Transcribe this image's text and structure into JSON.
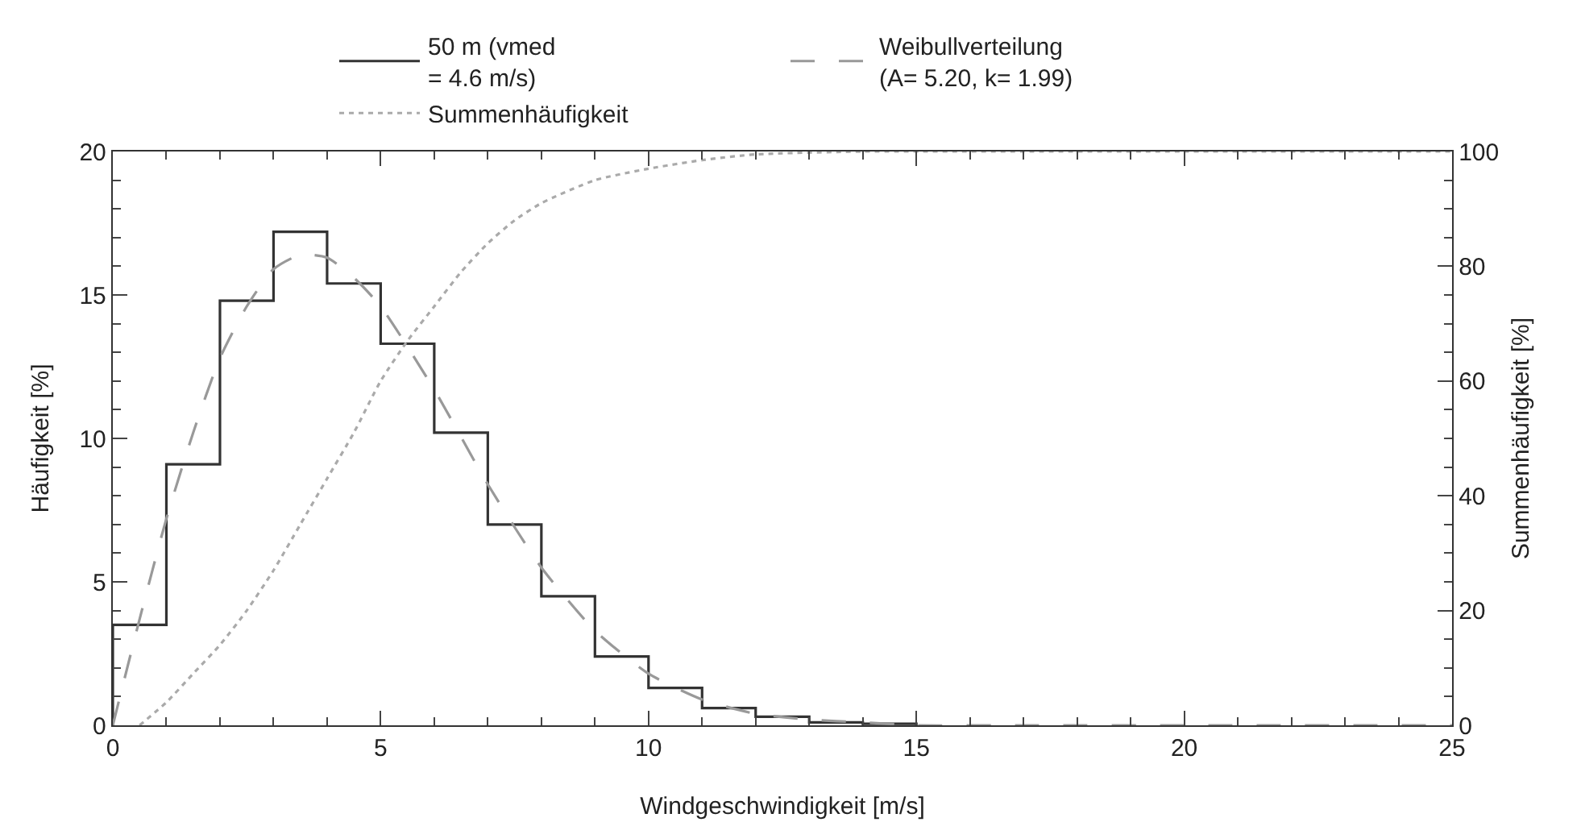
{
  "chart_data": {
    "type": "histogram",
    "xlabel": "Windgeschwindigkeit [m/s]",
    "ylabel": "Häufigkeit [%]",
    "y2label": "Summenhäufigkeit [%]",
    "xlim": [
      0,
      25
    ],
    "xticks": [
      0,
      5,
      10,
      15,
      20,
      25
    ],
    "ylim": [
      0,
      20
    ],
    "yticks": [
      0,
      5,
      10,
      15,
      20
    ],
    "y2lim": [
      0,
      100
    ],
    "y2ticks": [
      0,
      20,
      40,
      60,
      80,
      100
    ],
    "legend": "top",
    "grid": false,
    "series": [
      {
        "type": "histogram",
        "name": "50 m (vmed\n= 4.6 m/s)",
        "color": "#333333",
        "line_style": "solid",
        "bins": [
          0,
          1,
          2,
          3,
          4,
          5,
          6,
          7,
          8,
          9,
          10,
          11,
          12,
          13,
          14,
          15
        ],
        "values": [
          3.5,
          9.1,
          14.8,
          17.2,
          15.4,
          13.3,
          10.2,
          7.0,
          4.5,
          2.4,
          1.3,
          0.6,
          0.3,
          0.1,
          0.05
        ]
      },
      {
        "type": "line",
        "name": "Weibullverteilung\n(A= 5.20, k= 1.99)",
        "color": "#999999",
        "line_style": "dashed",
        "x": [
          0,
          0.5,
          1,
          1.5,
          2,
          2.5,
          3,
          3.5,
          4,
          4.5,
          5,
          6,
          7,
          8,
          9,
          10,
          11,
          12,
          13,
          14,
          15,
          17,
          20,
          25
        ],
        "values": [
          0,
          3.7,
          7.2,
          10.2,
          12.8,
          14.6,
          15.9,
          16.4,
          16.3,
          15.6,
          14.6,
          11.7,
          8.4,
          5.5,
          3.3,
          1.8,
          0.9,
          0.4,
          0.2,
          0.1,
          0,
          0,
          0,
          0
        ]
      },
      {
        "type": "line",
        "name": "Summenhäufigkeit",
        "axis": "y2",
        "color": "#aaaaaa",
        "line_style": "dotted",
        "x": [
          0.5,
          1,
          1.5,
          2,
          2.5,
          3,
          3.5,
          4,
          4.5,
          5,
          5.5,
          6,
          6.5,
          7,
          7.5,
          8,
          9,
          10,
          11,
          12,
          14,
          17,
          20,
          25
        ],
        "values": [
          0,
          4,
          9,
          14,
          20,
          27,
          35,
          43,
          51,
          60,
          67,
          73,
          79,
          84,
          88,
          91,
          95,
          97,
          98.5,
          99.5,
          100,
          100,
          100,
          100
        ]
      }
    ]
  }
}
